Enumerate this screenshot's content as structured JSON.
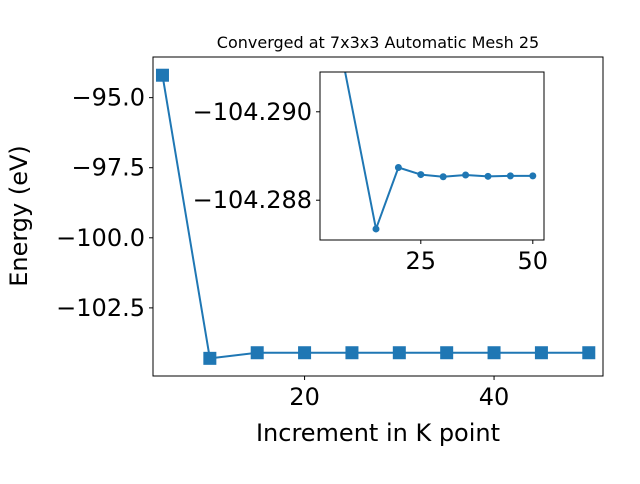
{
  "chart_data": [
    {
      "type": "line",
      "title": "Converged at 7x3x3 Automatic Mesh 25",
      "xlabel": "Increment in K point",
      "ylabel": "Energy (eV)",
      "xlim": [
        4,
        51.5
      ],
      "ylim": [
        -104.93,
        -93.55
      ],
      "xticks": [
        20,
        40
      ],
      "yticks": [
        -95.0,
        -97.5,
        -100.0,
        -102.5
      ],
      "ytick_labels": [
        "−95.0",
        "−97.5",
        "−100.0",
        "−102.5"
      ],
      "grid": false,
      "marker": "square",
      "color": "#1f77b4",
      "series": [
        {
          "x": [
            5,
            10,
            15,
            20,
            25,
            30,
            35,
            40,
            45,
            50
          ],
          "y": [
            -94.2,
            -104.3,
            -104.1,
            -104.1,
            -104.1,
            -104.1,
            -104.1,
            -104.1,
            -104.1,
            -104.1
          ]
        }
      ]
    },
    {
      "type": "line",
      "title": "",
      "xlabel": "",
      "ylabel": "",
      "xlim": [
        2.5,
        52.5
      ],
      "ylim": [
        -104.2871,
        -104.2909
      ],
      "xticks": [
        25,
        50
      ],
      "yticks": [
        -104.29,
        -104.288
      ],
      "ytick_labels": [
        "−104.290",
        "−104.288"
      ],
      "grid": false,
      "marker": "circle",
      "color": "#1f77b4",
      "series": [
        {
          "x": [
            5,
            15,
            20,
            25,
            30,
            35,
            40,
            45,
            50
          ],
          "y": [
            -104.2925,
            -104.28735,
            -104.28874,
            -104.28858,
            -104.28853,
            -104.28857,
            -104.28854,
            -104.28855,
            -104.28855
          ]
        }
      ]
    }
  ]
}
